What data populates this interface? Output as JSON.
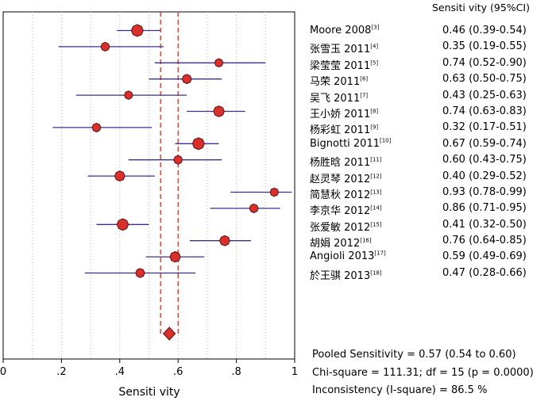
{
  "chart_data": {
    "type": "forest",
    "xlabel": "Sensiti vity",
    "xticks": [
      "0",
      ".2",
      ".4",
      ".6",
      ".8",
      "1"
    ],
    "xlim": [
      0,
      1
    ],
    "column_header": "Sensiti vity (95%CI)",
    "studies": [
      {
        "name": "Moore 2008",
        "ref": "[3]",
        "estimate": 0.46,
        "lower": 0.39,
        "upper": 0.54,
        "ci_text": "0.46 (0.39-0.54)",
        "weight": 1.0
      },
      {
        "name": "张雪玉 2011",
        "ref": "[4]",
        "estimate": 0.35,
        "lower": 0.19,
        "upper": 0.55,
        "ci_text": "0.35 (0.19-0.55)",
        "weight": 0.55
      },
      {
        "name": "梁莹莹 2011",
        "ref": "[5]",
        "estimate": 0.74,
        "lower": 0.52,
        "upper": 0.9,
        "ci_text": "0.74 (0.52-0.90)",
        "weight": 0.5
      },
      {
        "name": "马荣 2011",
        "ref": "[6]",
        "estimate": 0.63,
        "lower": 0.5,
        "upper": 0.75,
        "ci_text": "0.63 (0.50-0.75)",
        "weight": 0.65
      },
      {
        "name": "吴飞 2011",
        "ref": "[7]",
        "estimate": 0.43,
        "lower": 0.25,
        "upper": 0.63,
        "ci_text": "0.43 (0.25-0.63)",
        "weight": 0.5
      },
      {
        "name": "王小娇 2011",
        "ref": "[8]",
        "estimate": 0.74,
        "lower": 0.63,
        "upper": 0.83,
        "ci_text": "0.74 (0.63-0.83)",
        "weight": 0.85
      },
      {
        "name": "杨彩虹 2011",
        "ref": "[9]",
        "estimate": 0.32,
        "lower": 0.17,
        "upper": 0.51,
        "ci_text": "0.32 (0.17-0.51)",
        "weight": 0.55
      },
      {
        "name": "Bignotti 2011",
        "ref": "[10]",
        "estimate": 0.67,
        "lower": 0.59,
        "upper": 0.74,
        "ci_text": "0.67 (0.59-0.74)",
        "weight": 1.0
      },
      {
        "name": "杨胜晗 2011",
        "ref": "[11]",
        "estimate": 0.6,
        "lower": 0.43,
        "upper": 0.75,
        "ci_text": "0.60 (0.43-0.75)",
        "weight": 0.55
      },
      {
        "name": "赵灵琴 2012",
        "ref": "[12]",
        "estimate": 0.4,
        "lower": 0.29,
        "upper": 0.52,
        "ci_text": "0.40 (0.29-0.52)",
        "weight": 0.75
      },
      {
        "name": "简慧秋 2012",
        "ref": "[13]",
        "estimate": 0.93,
        "lower": 0.78,
        "upper": 0.99,
        "ci_text": "0.93 (0.78-0.99)",
        "weight": 0.5
      },
      {
        "name": "李京华 2012",
        "ref": "[14]",
        "estimate": 0.86,
        "lower": 0.71,
        "upper": 0.95,
        "ci_text": "0.86 (0.71-0.95)",
        "weight": 0.55
      },
      {
        "name": "张爱敏 2012",
        "ref": "[15]",
        "estimate": 0.41,
        "lower": 0.32,
        "upper": 0.5,
        "ci_text": "0.41 (0.32-0.50)",
        "weight": 0.95
      },
      {
        "name": "胡娟 2012",
        "ref": "[16]",
        "estimate": 0.76,
        "lower": 0.64,
        "upper": 0.85,
        "ci_text": "0.76 (0.64-0.85)",
        "weight": 0.75
      },
      {
        "name": "Angioli 2013",
        "ref": "[17]",
        "estimate": 0.59,
        "lower": 0.49,
        "upper": 0.69,
        "ci_text": "0.59 (0.49-0.69)",
        "weight": 0.8
      },
      {
        "name": "於王骐 2013",
        "ref": "[18]",
        "estimate": 0.47,
        "lower": 0.28,
        "upper": 0.66,
        "ci_text": "0.47 (0.28-0.66)",
        "weight": 0.6
      }
    ],
    "pooled": {
      "estimate": 0.57,
      "lower": 0.54,
      "upper": 0.6
    },
    "stats_lines": [
      "Pooled Sensitivity = 0.57 (0.54 to 0.60)",
      "Chi-square = 111.31; df = 15 (p = 0.0000)",
      "Inconsistency (I-square) = 86.5 %"
    ],
    "colors": {
      "ci_line": "#3a2f8a",
      "marker_fill": "#d9302c",
      "marker_stroke": "#5a1010",
      "pooled_line": "#e03a2a",
      "grid": "#b8b8b8"
    }
  }
}
